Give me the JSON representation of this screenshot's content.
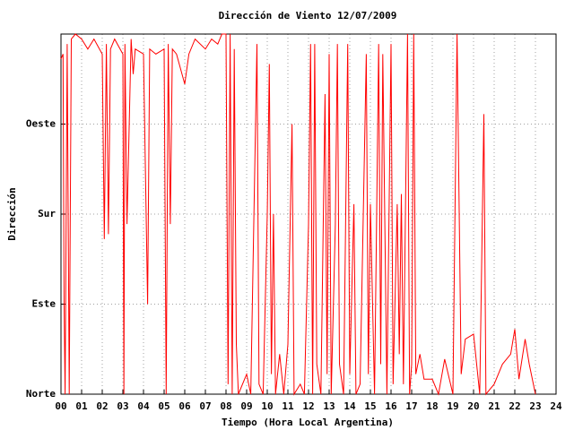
{
  "chart_data": {
    "type": "line",
    "title": "Dirección de Viento 12/07/2009",
    "x_label": "Tiempo (Hora Local Argentina)",
    "y_label": "Dirección",
    "xlim": [
      0,
      24
    ],
    "ylim": [
      0,
      360
    ],
    "xticks": [
      {
        "value": 0,
        "label": "00"
      },
      {
        "value": 1,
        "label": "01"
      },
      {
        "value": 2,
        "label": "02"
      },
      {
        "value": 3,
        "label": "03"
      },
      {
        "value": 4,
        "label": "04"
      },
      {
        "value": 5,
        "label": "05"
      },
      {
        "value": 6,
        "label": "06"
      },
      {
        "value": 7,
        "label": "07"
      },
      {
        "value": 8,
        "label": "08"
      },
      {
        "value": 9,
        "label": "09"
      },
      10,
      11,
      12,
      13,
      14,
      15,
      16,
      17,
      18,
      19,
      20,
      21,
      22,
      23,
      24
    ],
    "yticks": [
      {
        "value": 0,
        "label": "Norte"
      },
      {
        "value": 90,
        "label": "Este"
      },
      {
        "value": 180,
        "label": "Sur"
      },
      {
        "value": 270,
        "label": "Oeste"
      }
    ],
    "grid": true,
    "color": "#ff0000",
    "x": [
      0.0,
      0.1,
      0.15,
      0.2,
      0.3,
      0.4,
      0.5,
      0.7,
      1.0,
      1.3,
      1.6,
      2.0,
      2.1,
      2.2,
      2.3,
      2.4,
      2.6,
      3.0,
      3.05,
      3.1,
      3.2,
      3.4,
      3.5,
      3.6,
      4.0,
      4.2,
      4.3,
      4.6,
      5.0,
      5.1,
      5.2,
      5.3,
      5.4,
      5.6,
      6.0,
      6.2,
      6.5,
      7.0,
      7.3,
      7.6,
      7.8,
      8.0,
      8.1,
      8.2,
      8.3,
      8.4,
      8.5,
      8.6,
      9.0,
      9.2,
      9.5,
      9.6,
      9.8,
      10.0,
      10.1,
      10.2,
      10.3,
      10.4,
      10.6,
      10.8,
      11.0,
      11.2,
      11.3,
      11.6,
      11.8,
      12.0,
      12.1,
      12.2,
      12.3,
      12.4,
      12.6,
      12.8,
      12.9,
      13.0,
      13.1,
      13.3,
      13.4,
      13.5,
      13.7,
      13.9,
      14.0,
      14.2,
      14.3,
      14.5,
      14.8,
      14.9,
      15.0,
      15.2,
      15.4,
      15.5,
      15.6,
      15.8,
      16.0,
      16.1,
      16.3,
      16.4,
      16.5,
      16.6,
      16.8,
      16.9,
      17.0,
      17.1,
      17.2,
      17.4,
      17.6,
      18.0,
      18.3,
      18.6,
      19.0,
      19.2,
      19.3,
      19.4,
      19.6,
      20.0,
      20.3,
      20.5,
      20.6,
      21.0,
      21.4,
      21.8,
      22.0,
      22.2,
      22.5,
      22.7,
      23.0
    ],
    "values": [
      335,
      340,
      90,
      0,
      350,
      0,
      355,
      360,
      355,
      345,
      355,
      340,
      155,
      350,
      160,
      345,
      355,
      340,
      0,
      350,
      170,
      355,
      320,
      345,
      340,
      90,
      345,
      340,
      345,
      0,
      350,
      170,
      345,
      340,
      310,
      340,
      355,
      345,
      355,
      350,
      360,
      360,
      10,
      360,
      0,
      345,
      50,
      0,
      20,
      0,
      350,
      10,
      0,
      180,
      330,
      20,
      180,
      0,
      40,
      0,
      50,
      270,
      0,
      10,
      0,
      170,
      350,
      0,
      350,
      30,
      0,
      300,
      20,
      340,
      0,
      170,
      350,
      30,
      0,
      350,
      20,
      190,
      0,
      10,
      340,
      20,
      190,
      0,
      350,
      30,
      340,
      0,
      350,
      10,
      190,
      40,
      200,
      10,
      360,
      0,
      30,
      360,
      20,
      40,
      15,
      15,
      0,
      35,
      0,
      360,
      190,
      20,
      55,
      60,
      0,
      280,
      0,
      10,
      30,
      40,
      65,
      15,
      55,
      30,
      0
    ]
  }
}
